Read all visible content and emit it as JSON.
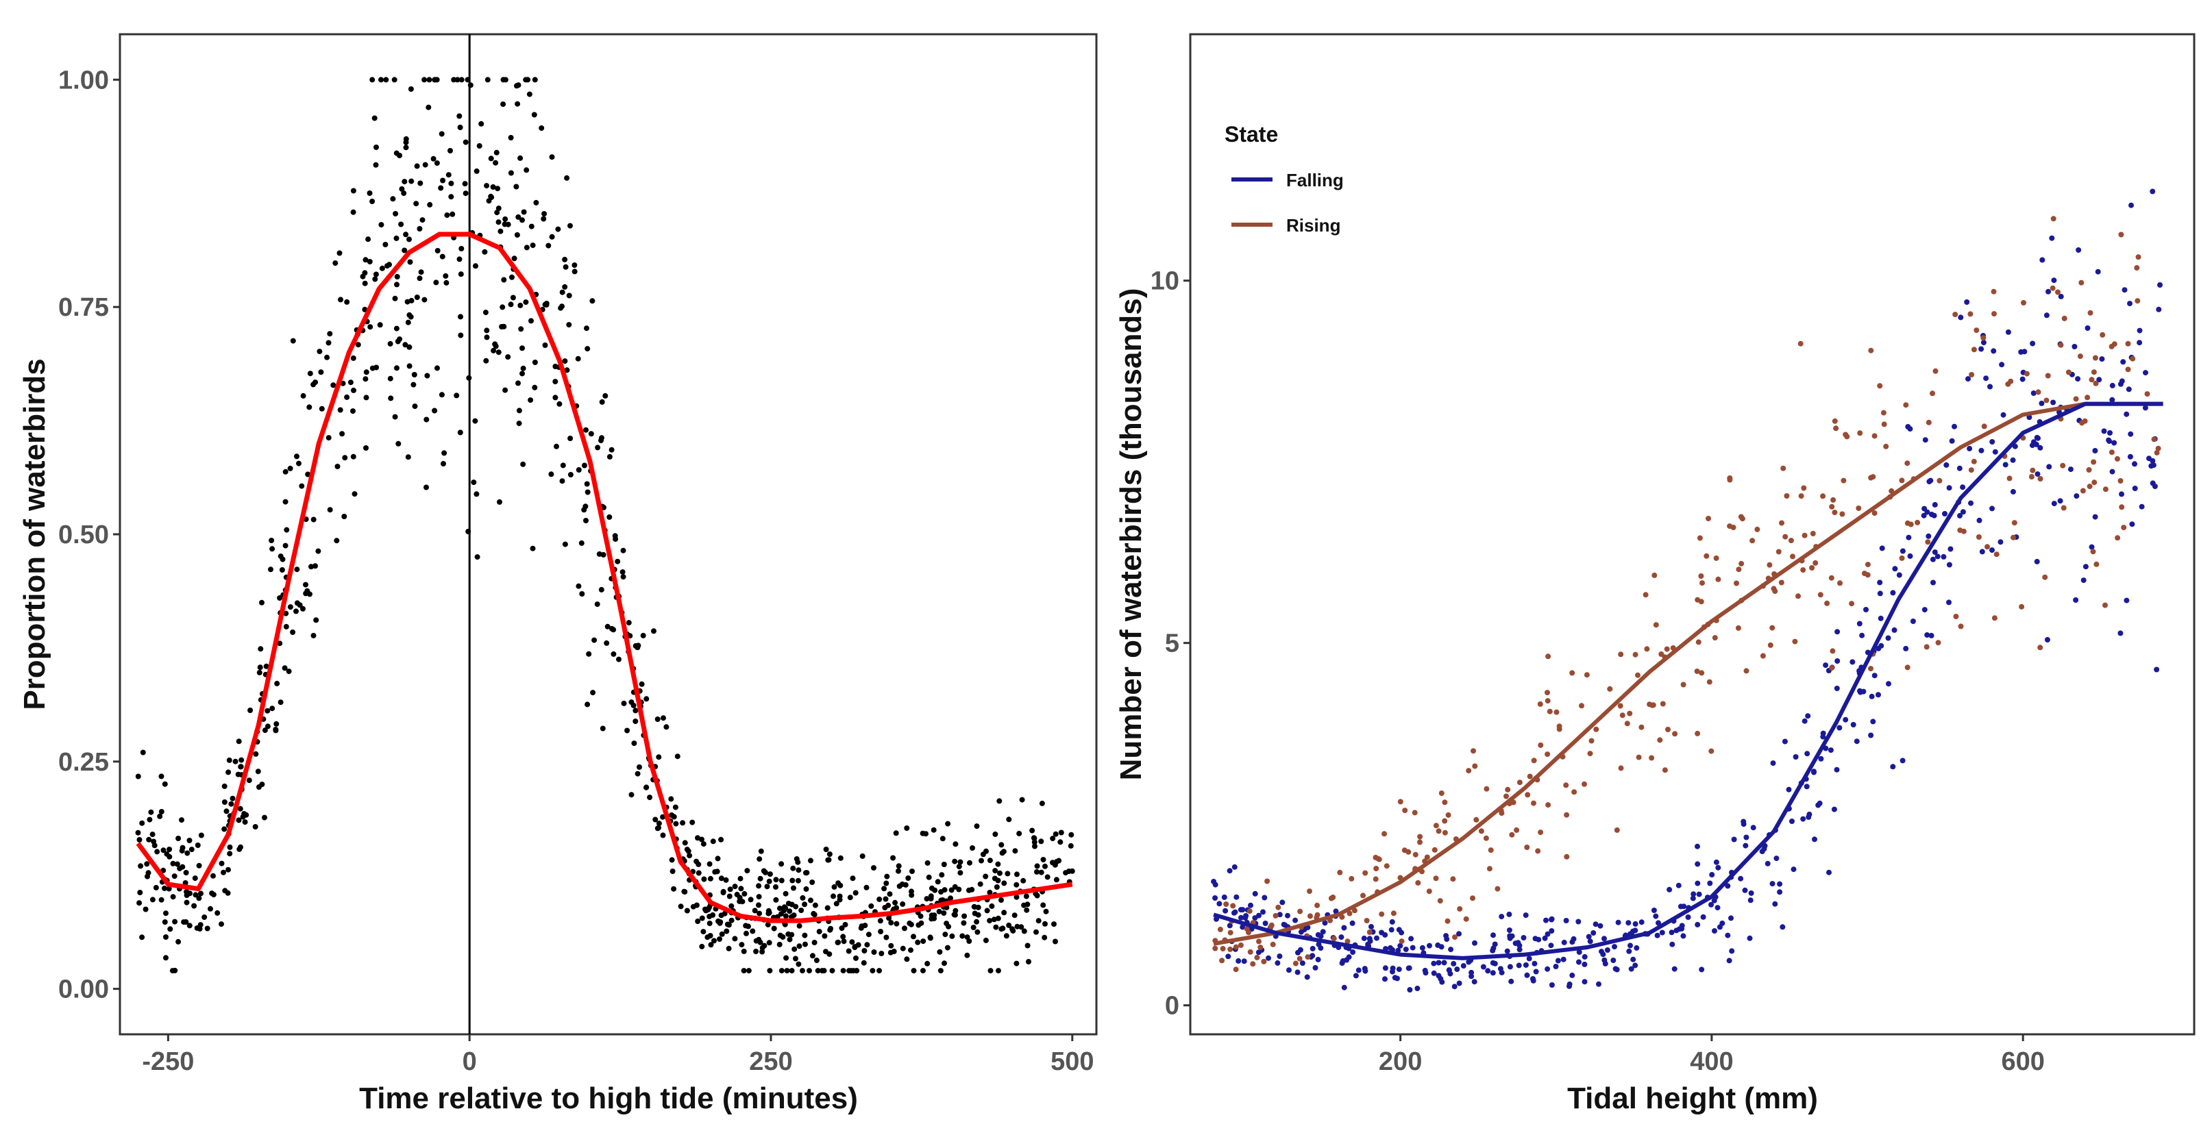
{
  "chart_data": [
    {
      "type": "scatter",
      "title": "",
      "xlabel": "Time relative to high tide (minutes)",
      "ylabel": "Proportion of waterbirds",
      "xlim": [
        -290,
        520
      ],
      "ylim": [
        -0.05,
        1.05
      ],
      "xticks": [
        "-250",
        "0",
        "250",
        "500"
      ],
      "xtick_values": [
        -250,
        0,
        250,
        500
      ],
      "yticks": [
        "0.00",
        "0.25",
        "0.50",
        "0.75",
        "1.00"
      ],
      "ytick_values": [
        0.0,
        0.25,
        0.5,
        0.75,
        1.0
      ],
      "vline_x": 0,
      "grid": false,
      "series": [
        {
          "name": "fitted",
          "mark": "line",
          "color": "#ff0000",
          "x": [
            -275,
            -250,
            -225,
            -200,
            -175,
            -150,
            -125,
            -100,
            -75,
            -50,
            -25,
            0,
            25,
            50,
            75,
            100,
            125,
            150,
            175,
            200,
            225,
            250,
            275,
            300,
            325,
            350,
            375,
            400,
            425,
            450,
            475,
            500
          ],
          "y": [
            0.16,
            0.115,
            0.11,
            0.17,
            0.29,
            0.45,
            0.6,
            0.7,
            0.77,
            0.81,
            0.83,
            0.83,
            0.815,
            0.77,
            0.69,
            0.58,
            0.42,
            0.25,
            0.14,
            0.095,
            0.08,
            0.075,
            0.075,
            0.078,
            0.08,
            0.083,
            0.088,
            0.095,
            0.1,
            0.105,
            0.11,
            0.115
          ]
        },
        {
          "name": "observations",
          "mark": "points",
          "color": "#000000",
          "n": 1100
        }
      ]
    },
    {
      "type": "scatter",
      "title": "",
      "xlabel": "Tidal height (mm)",
      "ylabel": "Number of waterbirds (thousands)",
      "xlim": [
        65,
        710
      ],
      "ylim": [
        -0.4,
        13.4
      ],
      "xticks": [
        "200",
        "400",
        "600"
      ],
      "xtick_values": [
        200,
        400,
        600
      ],
      "yticks": [
        "0",
        "5",
        "10"
      ],
      "ytick_values": [
        0,
        5,
        10
      ],
      "grid": false,
      "legend": {
        "title": "State",
        "position": "top-left",
        "items": [
          {
            "label": "Falling",
            "color": "#1a1a99"
          },
          {
            "label": "Rising",
            "color": "#994c33"
          }
        ]
      },
      "series": [
        {
          "name": "Falling",
          "color": "#1a1a99",
          "x": [
            80,
            120,
            160,
            200,
            240,
            280,
            320,
            360,
            400,
            440,
            480,
            520,
            560,
            600,
            640,
            690
          ],
          "y": [
            1.25,
            1.0,
            0.85,
            0.7,
            0.65,
            0.7,
            0.8,
            1.0,
            1.5,
            2.4,
            3.9,
            5.6,
            7.0,
            7.9,
            8.3,
            8.3
          ]
        },
        {
          "name": "Rising",
          "color": "#994c33",
          "x": [
            80,
            120,
            160,
            200,
            240,
            280,
            320,
            360,
            400,
            440,
            480,
            520,
            560,
            600,
            640,
            690
          ],
          "y": [
            0.85,
            1.0,
            1.25,
            1.7,
            2.3,
            3.0,
            3.8,
            4.6,
            5.3,
            5.9,
            6.5,
            7.1,
            7.7,
            8.15,
            8.3,
            8.3
          ]
        }
      ]
    }
  ]
}
